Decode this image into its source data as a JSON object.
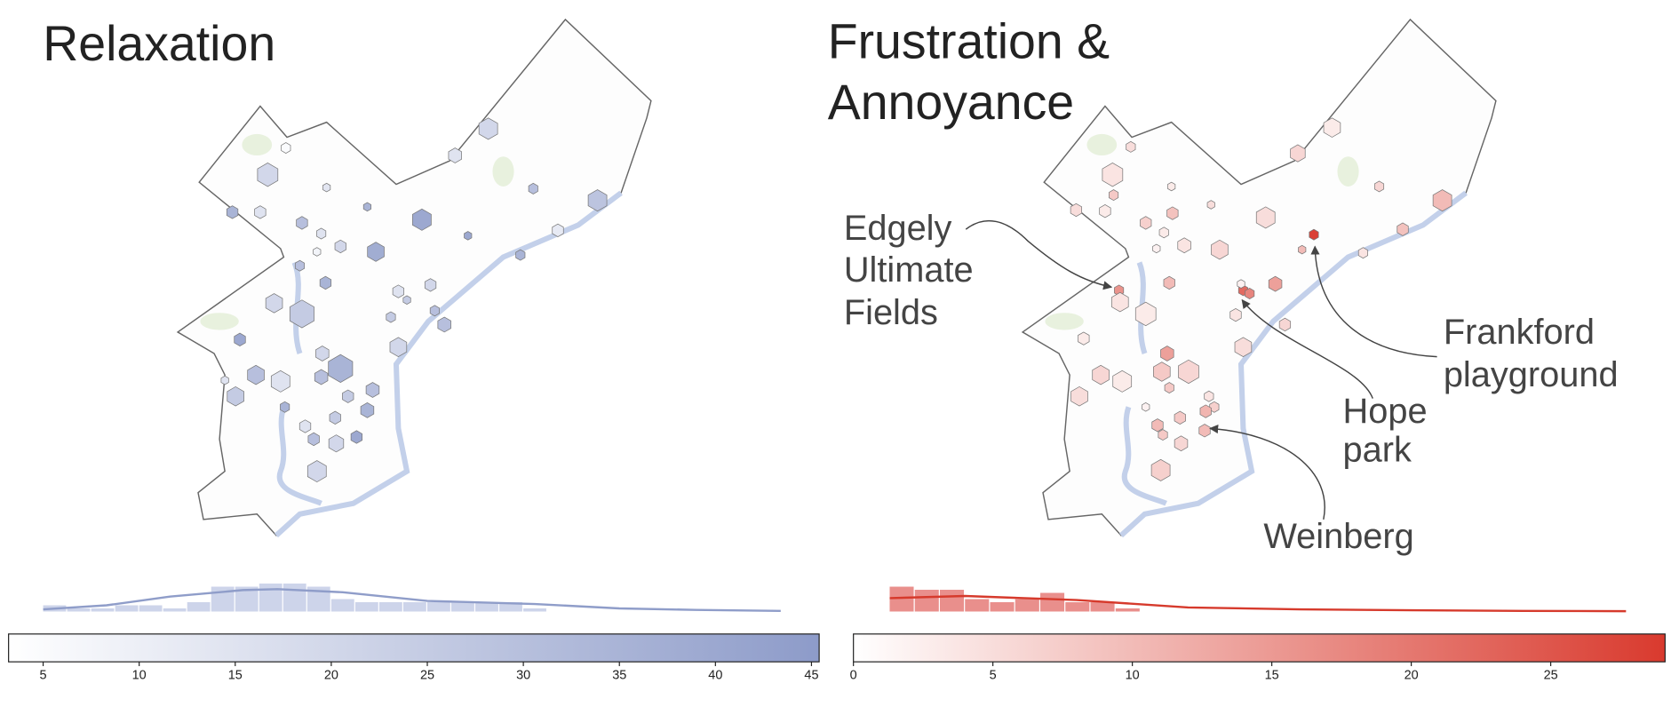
{
  "chart_data": [
    {
      "type": "hexbin-map",
      "title_lines": [
        "Relaxation"
      ],
      "color_low": "#ffffff",
      "color_high": "#8d9bc9",
      "hexbins": {
        "values": [
          20,
          15,
          30,
          28,
          12,
          35,
          40,
          40,
          38,
          35,
          14,
          20,
          5,
          35,
          15,
          30,
          15,
          20,
          8,
          30,
          35,
          15,
          20,
          25,
          30,
          20,
          25,
          25,
          30,
          40,
          20,
          20,
          35,
          30,
          15,
          30,
          25,
          30,
          25,
          35,
          35,
          15,
          25,
          30,
          40,
          20,
          20,
          15
        ]
      },
      "histogram": {
        "bins": [
          5,
          6.25,
          7.5,
          8.75,
          10,
          11.25,
          12.5,
          13.75,
          15,
          16.25,
          17.5,
          18.75,
          20,
          21.25,
          22.5,
          23.75,
          25,
          26.25,
          27.5,
          28.75,
          30,
          31.25,
          32.5
        ],
        "counts": [
          2,
          1,
          1,
          2,
          2,
          1,
          3,
          8,
          8,
          9,
          9,
          8,
          4,
          3,
          3,
          3,
          3,
          3,
          3,
          3,
          1,
          0
        ],
        "color": "#cdd4ea",
        "kde": {
          "x": [
            5,
            8.3,
            11.6,
            15.4,
            17.2,
            20.6,
            25,
            30.6,
            35,
            39,
            43.4
          ],
          "values": [
            0.7,
            2,
            4.8,
            6.9,
            7.2,
            6.2,
            3.4,
            2.4,
            1,
            0.5,
            0.2
          ],
          "color": "#8f9dc9"
        }
      },
      "colorbar": {
        "xlim": [
          3.2,
          45.4
        ],
        "xticks": [
          5,
          10,
          15,
          20,
          25,
          30,
          35,
          40,
          45
        ]
      }
    },
    {
      "type": "hexbin-map",
      "title_lines": [
        "Frustration &",
        "Annoyance"
      ],
      "color_low": "#ffffff",
      "color_high": "#d93a2e",
      "hexbins": {
        "values": [
          3,
          6,
          6,
          10,
          9,
          4,
          10,
          28,
          5,
          6,
          5,
          3,
          4,
          5,
          5,
          3,
          8,
          7,
          3,
          9,
          4,
          2,
          10,
          22,
          18,
          14,
          2,
          16,
          4,
          3,
          4,
          6,
          3,
          5,
          14,
          6,
          8,
          6,
          3,
          5,
          8,
          4,
          7,
          11,
          2,
          8,
          10,
          10,
          6,
          8,
          7
        ]
      },
      "histogram": {
        "bins": [
          1.3,
          2.2,
          3.1,
          4,
          4.9,
          5.8,
          6.7,
          7.6,
          8.5,
          9.4,
          10.3
        ],
        "counts": [
          8,
          7,
          7,
          4,
          3,
          4,
          6,
          3,
          3,
          1
        ],
        "color": "#e98f8c",
        "kde": {
          "x": [
            1.3,
            4,
            8,
            12,
            16,
            20,
            24,
            27.7
          ],
          "values": [
            4.3,
            5,
            3.7,
            1.3,
            0.7,
            0.4,
            0.2,
            0.1
          ],
          "color": "#d63a2c"
        }
      },
      "colorbar": {
        "xlim": [
          0,
          29.1
        ],
        "xticks": [
          0,
          5,
          10,
          15,
          20,
          25
        ]
      },
      "annotations": [
        {
          "lines": [
            "Edgely",
            "Ultimate",
            "Fields"
          ]
        },
        {
          "lines": [
            "Frankford",
            "playground"
          ]
        },
        {
          "lines": [
            "Hope",
            "park"
          ]
        },
        {
          "lines": [
            "Weinberg"
          ]
        }
      ]
    }
  ]
}
